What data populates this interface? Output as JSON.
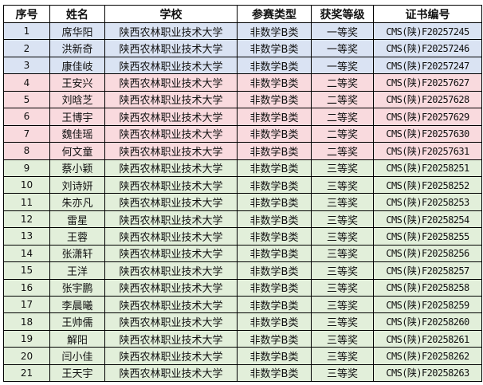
{
  "table": {
    "headers": [
      "序号",
      "姓名",
      "学校",
      "参赛类型",
      "获奖等级",
      "证书编号"
    ],
    "tier_colors": {
      "一等奖": "#dae3f3",
      "二等奖": "#f9dade",
      "三等奖": "#e2efda"
    },
    "rows": [
      [
        "1",
        "席华阳",
        "陕西农林职业技术大学",
        "非数学B类",
        "一等奖",
        "CMS(陕)F20257245"
      ],
      [
        "2",
        "洪新奇",
        "陕西农林职业技术大学",
        "非数学B类",
        "一等奖",
        "CMS(陕)F20257246"
      ],
      [
        "3",
        "康佳岐",
        "陕西农林职业技术大学",
        "非数学B类",
        "一等奖",
        "CMS(陕)F20257247"
      ],
      [
        "4",
        "王安兴",
        "陕西农林职业技术大学",
        "非数学B类",
        "二等奖",
        "CMS(陕)F20257627"
      ],
      [
        "5",
        "刘晗芝",
        "陕西农林职业技术大学",
        "非数学B类",
        "二等奖",
        "CMS(陕)F20257628"
      ],
      [
        "6",
        "王博宇",
        "陕西农林职业技术大学",
        "非数学B类",
        "二等奖",
        "CMS(陕)F20257629"
      ],
      [
        "7",
        "魏佳瑶",
        "陕西农林职业技术大学",
        "非数学B类",
        "二等奖",
        "CMS(陕)F20257630"
      ],
      [
        "8",
        "何文童",
        "陕西农林职业技术大学",
        "非数学B类",
        "二等奖",
        "CMS(陕)F20257631"
      ],
      [
        "9",
        "蔡小颖",
        "陕西农林职业技术大学",
        "非数学B类",
        "三等奖",
        "CMS(陕)F20258251"
      ],
      [
        "10",
        "刘诗妍",
        "陕西农林职业技术大学",
        "非数学B类",
        "三等奖",
        "CMS(陕)F20258252"
      ],
      [
        "11",
        "朱亦凡",
        "陕西农林职业技术大学",
        "非数学B类",
        "三等奖",
        "CMS(陕)F20258253"
      ],
      [
        "12",
        "雷星",
        "陕西农林职业技术大学",
        "非数学B类",
        "三等奖",
        "CMS(陕)F20258254"
      ],
      [
        "13",
        "王蓉",
        "陕西农林职业技术大学",
        "非数学B类",
        "三等奖",
        "CMS(陕)F20258255"
      ],
      [
        "14",
        "张潇轩",
        "陕西农林职业技术大学",
        "非数学B类",
        "三等奖",
        "CMS(陕)F20258256"
      ],
      [
        "15",
        "王洋",
        "陕西农林职业技术大学",
        "非数学B类",
        "三等奖",
        "CMS(陕)F20258257"
      ],
      [
        "16",
        "张宇鹏",
        "陕西农林职业技术大学",
        "非数学B类",
        "三等奖",
        "CMS(陕)F20258258"
      ],
      [
        "17",
        "李晨曦",
        "陕西农林职业技术大学",
        "非数学B类",
        "三等奖",
        "CMS(陕)F20258259"
      ],
      [
        "18",
        "王帅儒",
        "陕西农林职业技术大学",
        "非数学B类",
        "三等奖",
        "CMS(陕)F20258260"
      ],
      [
        "19",
        "解阳",
        "陕西农林职业技术大学",
        "非数学B类",
        "三等奖",
        "CMS(陕)F20258261"
      ],
      [
        "20",
        "闫小佳",
        "陕西农林职业技术大学",
        "非数学B类",
        "三等奖",
        "CMS(陕)F20258262"
      ],
      [
        "21",
        "王天宇",
        "陕西农林职业技术大学",
        "非数学B类",
        "三等奖",
        "CMS(陕)F20258263"
      ]
    ]
  }
}
